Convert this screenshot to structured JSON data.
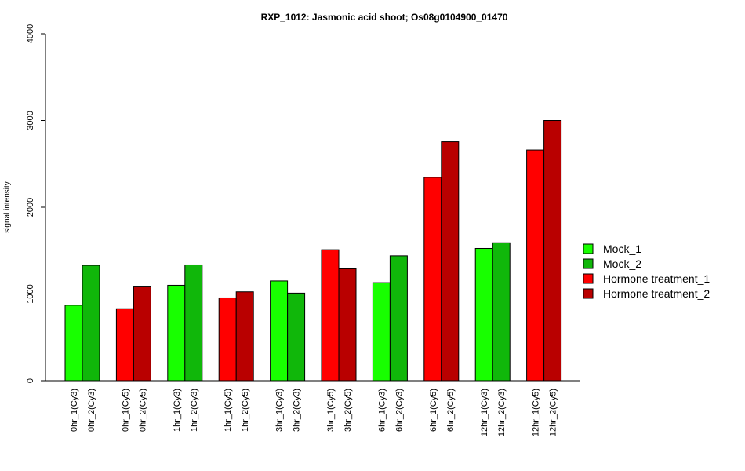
{
  "chart_data": {
    "type": "bar",
    "title": "RXP_1012: Jasmonic acid shoot; Os08g0104900_01470",
    "ylabel": "signal intensity",
    "xlabel": "",
    "ylim": [
      0,
      4000
    ],
    "yticks": [
      0,
      1000,
      2000,
      3000,
      4000
    ],
    "grid": false,
    "legend_position": "right",
    "legend": [
      {
        "name": "Mock_1",
        "color": "#18ff00"
      },
      {
        "name": "Mock_2",
        "color": "#10b70a"
      },
      {
        "name": "Hormone treatment_1",
        "color": "#ff0000"
      },
      {
        "name": "Hormone treatment_2",
        "color": "#b90000"
      }
    ],
    "bars": [
      {
        "label": "0hr_1(Cy3)",
        "value": 870,
        "series": "Mock_1"
      },
      {
        "label": "0hr_2(Cy3)",
        "value": 1330,
        "series": "Mock_2"
      },
      {
        "label": "0hr_1(Cy5)",
        "value": 830,
        "series": "Hormone treatment_1"
      },
      {
        "label": "0hr_2(Cy5)",
        "value": 1090,
        "series": "Hormone treatment_2"
      },
      {
        "label": "1hr_1(Cy3)",
        "value": 1100,
        "series": "Mock_1"
      },
      {
        "label": "1hr_2(Cy3)",
        "value": 1335,
        "series": "Mock_2"
      },
      {
        "label": "1hr_1(Cy5)",
        "value": 955,
        "series": "Hormone treatment_1"
      },
      {
        "label": "1hr_2(Cy5)",
        "value": 1025,
        "series": "Hormone treatment_2"
      },
      {
        "label": "3hr_1(Cy3)",
        "value": 1150,
        "series": "Mock_1"
      },
      {
        "label": "3hr_2(Cy3)",
        "value": 1010,
        "series": "Mock_2"
      },
      {
        "label": "3hr_1(Cy5)",
        "value": 1510,
        "series": "Hormone treatment_1"
      },
      {
        "label": "3hr_2(Cy5)",
        "value": 1290,
        "series": "Hormone treatment_2"
      },
      {
        "label": "6hr_1(Cy3)",
        "value": 1130,
        "series": "Mock_1"
      },
      {
        "label": "6hr_2(Cy3)",
        "value": 1440,
        "series": "Mock_2"
      },
      {
        "label": "6hr_1(Cy5)",
        "value": 2345,
        "series": "Hormone treatment_1"
      },
      {
        "label": "6hr_2(Cy5)",
        "value": 2755,
        "series": "Hormone treatment_2"
      },
      {
        "label": "12hr_1(Cy3)",
        "value": 1525,
        "series": "Mock_1"
      },
      {
        "label": "12hr_2(Cy3)",
        "value": 1590,
        "series": "Mock_2"
      },
      {
        "label": "12hr_1(Cy5)",
        "value": 2660,
        "series": "Hormone treatment_1"
      },
      {
        "label": "12hr_2(Cy5)",
        "value": 3000,
        "series": "Hormone treatment_2"
      }
    ]
  }
}
